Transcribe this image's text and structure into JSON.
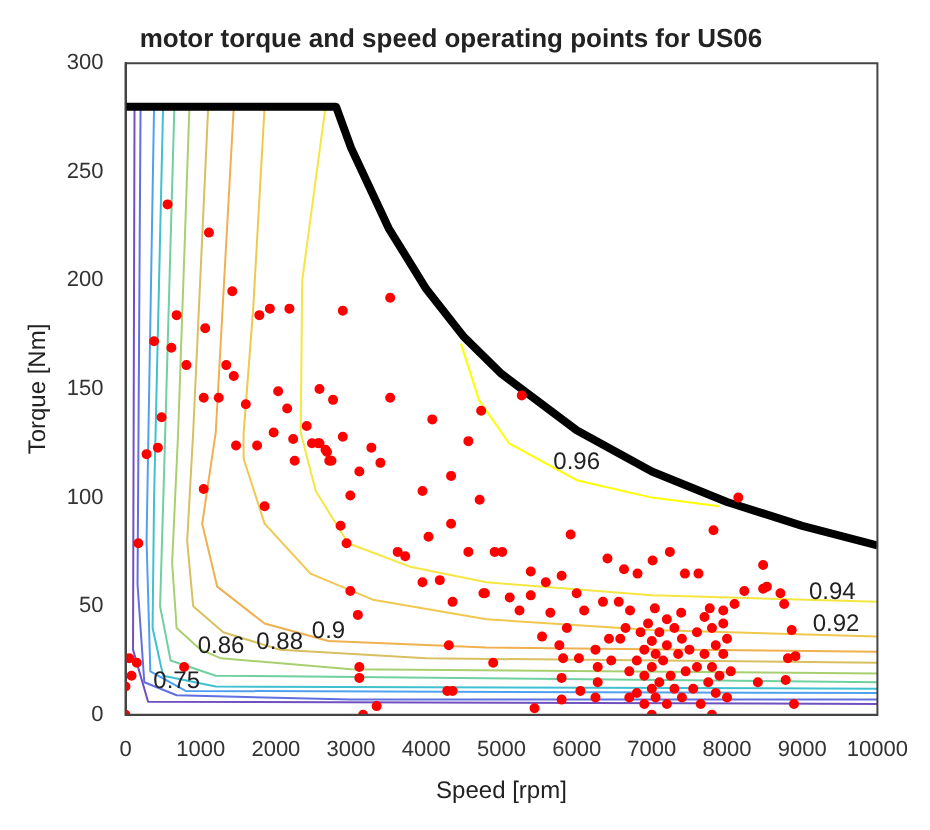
{
  "chart_data": {
    "type": "scatter",
    "title": "motor torque and speed operating points for US06",
    "xlabel": "Speed [rpm]",
    "ylabel": "Torque [Nm]",
    "xlim": [
      0,
      10000
    ],
    "ylim": [
      0,
      300
    ],
    "xticks": [
      0,
      1000,
      2000,
      3000,
      4000,
      5000,
      6000,
      7000,
      8000,
      9000,
      10000
    ],
    "yticks": [
      0,
      50,
      100,
      150,
      200,
      250,
      300
    ],
    "grid": false,
    "legend": false,
    "series": [
      {
        "type": "line",
        "color": "#000000",
        "marker": "none",
        "line_style": "solid",
        "x": [
          0,
          2800,
          3000,
          3500,
          4000,
          4500,
          5000,
          6000,
          7000,
          8000,
          9000,
          10000
        ],
        "values": [
          280,
          280,
          261,
          224,
          196,
          174,
          157,
          131,
          112,
          98,
          87,
          78
        ]
      },
      {
        "type": "line",
        "color": "#ffff00",
        "marker": "none",
        "line_style": "solid",
        "x": [
          4460,
          4700,
          5100,
          6000,
          7000,
          7900
        ],
        "values": [
          171,
          145,
          125,
          108,
          100,
          96
        ]
      },
      {
        "type": "line",
        "color": "#f5e642",
        "marker": "none",
        "line_style": "solid",
        "x": [
          2660,
          2350,
          2330,
          2530,
          2960,
          3800,
          4800,
          7000,
          10000
        ],
        "values": [
          280,
          200,
          130,
          103,
          79,
          68,
          61,
          55,
          52
        ]
      },
      {
        "type": "line",
        "color": "#f0c850",
        "marker": "none",
        "line_style": "solid",
        "x": [
          1850,
          1700,
          1570,
          1570,
          1850,
          2460,
          3290,
          4800,
          7000,
          10000
        ],
        "values": [
          280,
          188,
          129,
          118,
          88,
          65,
          53,
          44,
          39,
          36
        ]
      },
      {
        "type": "line",
        "color": "#f0b050",
        "marker": "none",
        "line_style": "solid",
        "x": [
          1440,
          1200,
          1020,
          1220,
          1850,
          2700,
          4800,
          10000
        ],
        "values": [
          280,
          130,
          88,
          59,
          42,
          34,
          31,
          29
        ]
      },
      {
        "type": "line",
        "color": "#d8c060",
        "marker": "none",
        "line_style": "solid",
        "x": [
          1100,
          900,
          820,
          900,
          1300,
          2050,
          4000,
          10000
        ],
        "values": [
          280,
          130,
          80,
          50,
          38,
          30,
          26,
          24
        ]
      },
      {
        "type": "line",
        "color": "#a8d070",
        "marker": "none",
        "line_style": "solid",
        "x": [
          850,
          700,
          620,
          680,
          1000,
          1270,
          3000,
          10000
        ],
        "values": [
          280,
          130,
          70,
          40,
          30,
          26,
          21,
          19
        ]
      },
      {
        "type": "line",
        "color": "#70d0a0",
        "marker": "none",
        "line_style": "solid",
        "x": [
          650,
          520,
          460,
          600,
          1200,
          10000
        ],
        "values": [
          280,
          120,
          50,
          25,
          18,
          15
        ]
      },
      {
        "type": "line",
        "color": "#40c0d0",
        "marker": "none",
        "line_style": "solid",
        "x": [
          500,
          380,
          360,
          500,
          1200,
          10000
        ],
        "values": [
          280,
          100,
          40,
          18,
          13,
          12
        ]
      },
      {
        "type": "line",
        "color": "#50a0f0",
        "marker": "none",
        "line_style": "solid",
        "x": [
          380,
          280,
          330,
          800,
          10000
        ],
        "values": [
          280,
          80,
          20,
          11,
          10
        ]
      },
      {
        "type": "line",
        "color": "#6070e0",
        "marker": "none",
        "line_style": "solid",
        "x": [
          200,
          160,
          250,
          680,
          3000,
          10000
        ],
        "values": [
          280,
          60,
          15,
          9,
          7,
          7
        ]
      },
      {
        "type": "line",
        "color": "#7050c0",
        "marker": "none",
        "line_style": "solid",
        "x": [
          120,
          100,
          300,
          10000
        ],
        "values": [
          280,
          30,
          6,
          5
        ]
      },
      {
        "type": "scatter",
        "color": "#ff0000",
        "marker": "circle",
        "x": [
          560,
          1110,
          1420,
          680,
          1060,
          380,
          610,
          810,
          1340,
          1440,
          1780,
          1920,
          2180,
          2890,
          3520,
          1040,
          1240,
          1600,
          2030,
          2150,
          2580,
          2760,
          3520,
          4080,
          4730,
          5270,
          480,
          8150,
          2890,
          2580,
          2660,
          2710,
          3270,
          3390,
          3110,
          4560,
          4330,
          3950,
          2990,
          4710,
          2860,
          2940,
          4330,
          4030,
          3620,
          3720,
          4560,
          4910,
          5010,
          5920,
          7820,
          8480,
          7240,
          7010,
          6410,
          430,
          280,
          170,
          1040,
          1850,
          1470,
          1750,
          1970,
          2230,
          2410,
          2480,
          2560,
          2680,
          2740,
          2250,
          2990,
          3090,
          3110,
          3110,
          3160,
          3340,
          780,
          50,
          150,
          0,
          80,
          0,
          3950,
          4180,
          4350,
          4300,
          4280,
          4350,
          4760,
          5390,
          5590,
          5800,
          6630,
          6810,
          7440,
          7620,
          4780,
          5110,
          5240,
          5390,
          5650,
          6000,
          6100,
          6350,
          6560,
          6710,
          7040,
          7390,
          7770,
          7950,
          8100,
          8230,
          8480,
          8530,
          8710,
          8760,
          8860,
          8810,
          8910,
          8780,
          8890,
          8410,
          4890,
          5440,
          5540,
          5770,
          5870,
          5820,
          5800,
          5800,
          6030,
          6050,
          6250,
          6280,
          6280,
          6250,
          6430,
          6460,
          6580,
          6800,
          6800,
          6850,
          6900,
          6900,
          6900,
          6950,
          7000,
          7000,
          7000,
          7000,
          7050,
          7050,
          7100,
          7100,
          7150,
          7200,
          7200,
          7250,
          7300,
          7300,
          7350,
          7400,
          7400,
          7450,
          7500,
          7550,
          7600,
          7600,
          7650,
          7700,
          7750,
          7800,
          7800,
          7800,
          7850,
          7850,
          7900,
          7950,
          7950,
          8000,
          8000,
          8050,
          7700,
          7200,
          6700,
          6700,
          6650
        ],
        "values": [
          235,
          222,
          195,
          184,
          178,
          172,
          169,
          161,
          161,
          156,
          184,
          187,
          187,
          186,
          192,
          146,
          146,
          143,
          149,
          141,
          150,
          145,
          146,
          136,
          140,
          147,
          137,
          100,
          128,
          125,
          122,
          117,
          123,
          116,
          112,
          126,
          110,
          103,
          101,
          99,
          87,
          79,
          88,
          82,
          75,
          73,
          75,
          75,
          75,
          83,
          85,
          69,
          75,
          71,
          72,
          123,
          120,
          79,
          104,
          96,
          124,
          124,
          130,
          127,
          133,
          125,
          125,
          121,
          117,
          117,
          57,
          46,
          22,
          17,
          0,
          4,
          22,
          26,
          24,
          13,
          18,
          0,
          61,
          62,
          52,
          32,
          11,
          11,
          56,
          66,
          61,
          64,
          67,
          65,
          65,
          65,
          56,
          54,
          48,
          55,
          47,
          56,
          48,
          52,
          52,
          48,
          49,
          47,
          49,
          48,
          51,
          57,
          58,
          59,
          56,
          51,
          39,
          26,
          27,
          16,
          5,
          15,
          24,
          3,
          36,
          32,
          40,
          26,
          17,
          7,
          26,
          11,
          30,
          22,
          15,
          8,
          35,
          25,
          35,
          10,
          25,
          38,
          5,
          18,
          30,
          42,
          0,
          12,
          22,
          34,
          28,
          8,
          15,
          38,
          25,
          5,
          32,
          18,
          40,
          12,
          28,
          8,
          35,
          20,
          30,
          12,
          38,
          22,
          5,
          28,
          15,
          0,
          40,
          22,
          10,
          32,
          18,
          42,
          28,
          8,
          35,
          20,
          45,
          44,
          20,
          8,
          40
        ]
      }
    ],
    "annotations": [
      {
        "text": "0.96",
        "x": 6000,
        "y": 110
      },
      {
        "text": "0.94",
        "x": 9400,
        "y": 50
      },
      {
        "text": "0.92",
        "x": 9450,
        "y": 35
      },
      {
        "text": "0.9",
        "x": 2700,
        "y": 32
      },
      {
        "text": "0.88",
        "x": 2050,
        "y": 27
      },
      {
        "text": "0.86",
        "x": 1270,
        "y": 25
      },
      {
        "text": "0.75",
        "x": 680,
        "y": 9
      }
    ]
  }
}
